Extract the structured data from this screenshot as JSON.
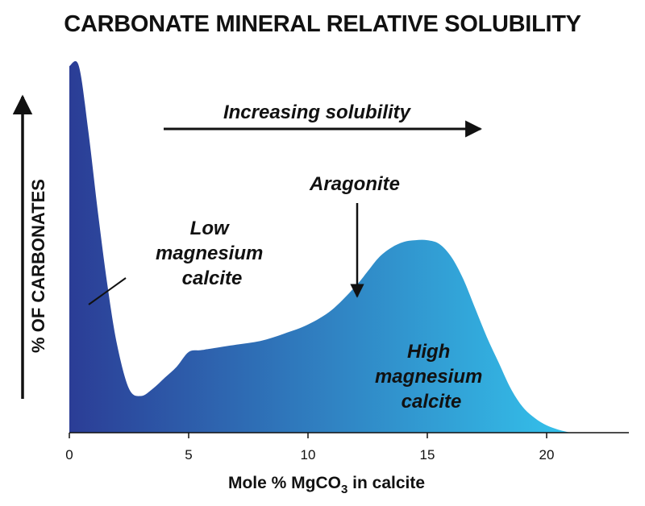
{
  "title": "CARBONATE MINERAL RELATIVE SOLUBILITY",
  "chart_data": {
    "type": "area",
    "title": "CARBONATE MINERAL RELATIVE SOLUBILITY",
    "xlabel_main": "Mole % MgCO",
    "xlabel_sub": "3",
    "xlabel_tail": " in calcite",
    "ylabel": "% OF CARBONATES",
    "xlim": [
      0,
      23.5
    ],
    "ylim": [
      0,
      100
    ],
    "xticks": [
      0,
      5,
      10,
      15,
      20
    ],
    "grid": false,
    "legend": "none",
    "x": [
      0,
      0.4,
      0.8,
      1.2,
      1.6,
      2.0,
      2.5,
      3.0,
      3.5,
      4.0,
      4.5,
      5.0,
      5.5,
      6.0,
      7.0,
      8.0,
      9.0,
      10.0,
      11.0,
      12.0,
      12.5,
      13.0,
      13.5,
      14.0,
      14.5,
      15.0,
      15.5,
      16.0,
      16.5,
      17.0,
      17.5,
      18.0,
      18.5,
      19.0,
      19.5,
      20.0,
      20.5,
      21.0
    ],
    "y": [
      100,
      100,
      82,
      60,
      40,
      24,
      12,
      10,
      12,
      15,
      18,
      22,
      22.5,
      23,
      24,
      25,
      27,
      29.5,
      33.5,
      40,
      44,
      48,
      50.5,
      52,
      52.5,
      52.5,
      51.5,
      48,
      42,
      34,
      26,
      19,
      12,
      7,
      4,
      2,
      0.8,
      0
    ],
    "colors": {
      "low_mg": "#2b3d96",
      "high_mg": "#34c0ea"
    },
    "annotations": {
      "increasing": "Increasing solubility",
      "aragonite": "Aragonite",
      "low_mg": [
        "Low",
        "magnesium",
        "calcite"
      ],
      "high_mg": [
        "High",
        "magnesium",
        "calcite"
      ]
    }
  }
}
